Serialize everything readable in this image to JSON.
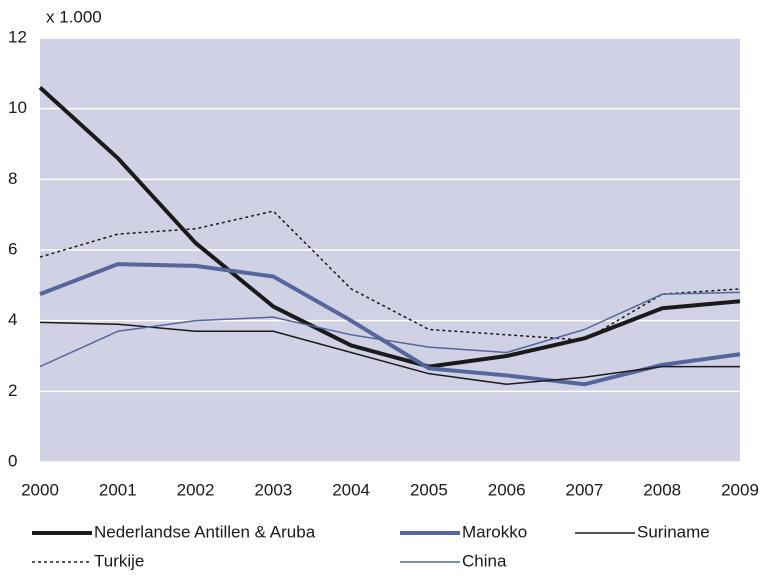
{
  "chart_data": {
    "type": "line",
    "ylabel": "x 1.000",
    "categories": [
      "2000",
      "2001",
      "2002",
      "2003",
      "2004",
      "2005",
      "2006",
      "2007",
      "2008",
      "2009"
    ],
    "ylim": [
      0,
      12
    ],
    "yticks": [
      0,
      2,
      4,
      6,
      8,
      10,
      12
    ],
    "grid": true,
    "background": "#d0d1e4",
    "grid_color": "#ffffff",
    "series": [
      {
        "name": "Nederlandse Antillen & Aruba",
        "color": "#1a1a1a",
        "values": [
          10.6,
          8.6,
          6.2,
          4.4,
          3.3,
          2.7,
          3.0,
          3.5,
          4.35,
          4.55
        ]
      },
      {
        "name": "Marokko",
        "color": "#55669c",
        "values": [
          4.75,
          5.6,
          5.55,
          5.25,
          4.0,
          2.65,
          2.45,
          2.2,
          2.75,
          3.05
        ]
      },
      {
        "name": "Suriname",
        "color": "#1a1a1a",
        "values": [
          3.95,
          3.9,
          3.7,
          3.7,
          3.1,
          2.5,
          2.2,
          2.4,
          2.7,
          2.7
        ]
      },
      {
        "name": "Turkije",
        "color": "#1a1a1a",
        "dash": "dotted",
        "values": [
          5.8,
          6.45,
          6.6,
          7.1,
          4.9,
          3.75,
          3.6,
          3.45,
          4.75,
          4.9
        ]
      },
      {
        "name": "China",
        "color": "#55669c",
        "values": [
          2.7,
          3.7,
          4.0,
          4.1,
          3.6,
          3.25,
          3.1,
          3.75,
          4.75,
          4.8
        ]
      }
    ]
  }
}
